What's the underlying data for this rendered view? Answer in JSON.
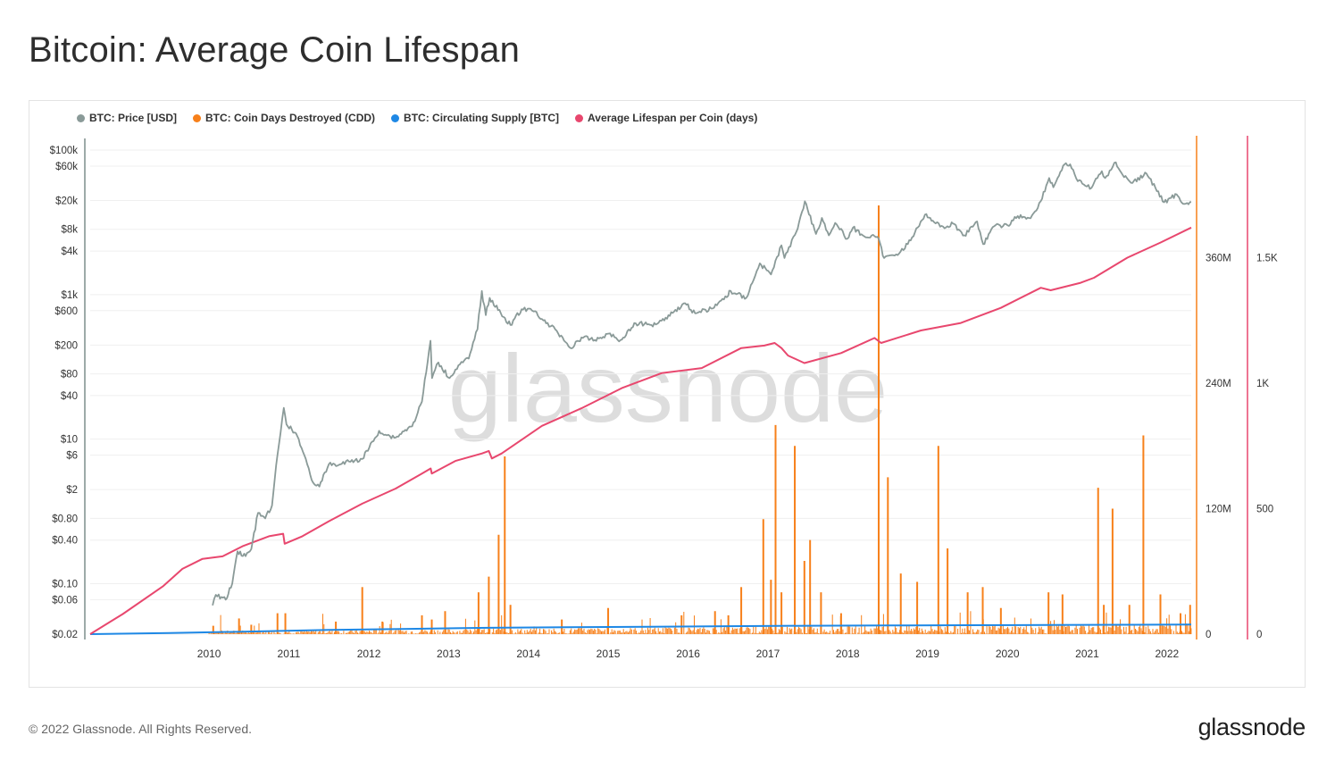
{
  "page": {
    "title": "Bitcoin: Average Coin Lifespan",
    "footer": "© 2022 Glassnode. All Rights Reserved.",
    "brand": "glassnode",
    "watermark": "glassnode"
  },
  "chart_data": {
    "type": "line",
    "grid": true,
    "legend_placement": "top-left",
    "legend": [
      {
        "label": "BTC: Price [USD]",
        "color": "#8a9a98"
      },
      {
        "label": "BTC: Coin Days Destroyed (CDD)",
        "color": "#f7801a"
      },
      {
        "label": "BTC: Circulating Supply [BTC]",
        "color": "#1e88e5"
      },
      {
        "label": "Average Lifespan per Coin (days)",
        "color": "#e8476e"
      }
    ],
    "x_ticks": [
      "2010",
      "2011",
      "2012",
      "2013",
      "2014",
      "2015",
      "2016",
      "2017",
      "2018",
      "2019",
      "2020",
      "2021",
      "2022"
    ],
    "x_range": [
      "2009-01-03",
      "2022-10-20"
    ],
    "price_axis": {
      "scale": "log",
      "ticks": [
        {
          "label": "$100k",
          "value": 100000
        },
        {
          "label": "$60k",
          "value": 60000
        },
        {
          "label": "$20k",
          "value": 20000
        },
        {
          "label": "$8k",
          "value": 8000
        },
        {
          "label": "$4k",
          "value": 4000
        },
        {
          "label": "$1k",
          "value": 1000
        },
        {
          "label": "$600",
          "value": 600
        },
        {
          "label": "$200",
          "value": 200
        },
        {
          "label": "$80",
          "value": 80
        },
        {
          "label": "$40",
          "value": 40
        },
        {
          "label": "$10",
          "value": 10
        },
        {
          "label": "$6",
          "value": 6
        },
        {
          "label": "$2",
          "value": 2
        },
        {
          "label": "$0.80",
          "value": 0.8
        },
        {
          "label": "$0.40",
          "value": 0.4
        },
        {
          "label": "$0.10",
          "value": 0.1
        },
        {
          "label": "$0.06",
          "value": 0.06
        },
        {
          "label": "$0.02",
          "value": 0.02
        }
      ]
    },
    "cdd_axis": {
      "ticks": [
        {
          "label": "360M",
          "value": 360000000
        },
        {
          "label": "240M",
          "value": 240000000
        },
        {
          "label": "120M",
          "value": 120000000
        },
        {
          "label": "0",
          "value": 0
        }
      ],
      "range": [
        0,
        480000000
      ]
    },
    "lifespan_axis": {
      "ticks": [
        {
          "label": "1.5K",
          "value": 1500
        },
        {
          "label": "1K",
          "value": 1000
        },
        {
          "label": "500",
          "value": 500
        },
        {
          "label": "0",
          "value": 0
        }
      ],
      "range": [
        0,
        2000
      ]
    },
    "series": [
      {
        "name": "BTC: Price [USD]",
        "color": "#8a9a98",
        "axis": "price",
        "points": [
          [
            "2010-07-17",
            0.05
          ],
          [
            "2010-08-01",
            0.07
          ],
          [
            "2010-09-15",
            0.06
          ],
          [
            "2010-10-15",
            0.1
          ],
          [
            "2010-11-08",
            0.28
          ],
          [
            "2010-12-15",
            0.24
          ],
          [
            "2011-01-10",
            0.3
          ],
          [
            "2011-02-10",
            0.95
          ],
          [
            "2011-03-15",
            0.8
          ],
          [
            "2011-04-15",
            1.2
          ],
          [
            "2011-05-10",
            6
          ],
          [
            "2011-06-08",
            27
          ],
          [
            "2011-06-20",
            16
          ],
          [
            "2011-07-15",
            13.5
          ],
          [
            "2011-08-15",
            10
          ],
          [
            "2011-09-10",
            6
          ],
          [
            "2011-10-20",
            2.5
          ],
          [
            "2011-11-18",
            2.2
          ],
          [
            "2011-12-31",
            4.5
          ],
          [
            "2012-02-15",
            4.4
          ],
          [
            "2012-04-01",
            4.9
          ],
          [
            "2012-06-01",
            5.3
          ],
          [
            "2012-08-17",
            13
          ],
          [
            "2012-09-15",
            11.5
          ],
          [
            "2012-11-01",
            10.5
          ],
          [
            "2012-12-15",
            13.4
          ],
          [
            "2013-01-15",
            15
          ],
          [
            "2013-03-01",
            33
          ],
          [
            "2013-04-09",
            230
          ],
          [
            "2013-04-16",
            70
          ],
          [
            "2013-05-15",
            115
          ],
          [
            "2013-07-05",
            70
          ],
          [
            "2013-08-15",
            105
          ],
          [
            "2013-10-01",
            130
          ],
          [
            "2013-11-10",
            330
          ],
          [
            "2013-11-30",
            1120
          ],
          [
            "2013-12-18",
            520
          ],
          [
            "2014-01-05",
            900
          ],
          [
            "2014-02-25",
            550
          ],
          [
            "2014-04-10",
            380
          ],
          [
            "2014-05-31",
            625
          ],
          [
            "2014-08-01",
            590
          ],
          [
            "2014-09-20",
            400
          ],
          [
            "2014-11-01",
            330
          ],
          [
            "2015-01-14",
            180
          ],
          [
            "2015-03-01",
            255
          ],
          [
            "2015-05-01",
            235
          ],
          [
            "2015-07-10",
            290
          ],
          [
            "2015-08-20",
            225
          ],
          [
            "2015-11-04",
            400
          ],
          [
            "2016-01-15",
            380
          ],
          [
            "2016-03-01",
            435
          ],
          [
            "2016-06-17",
            760
          ],
          [
            "2016-08-02",
            550
          ],
          [
            "2016-10-15",
            640
          ],
          [
            "2016-12-31",
            960
          ],
          [
            "2017-01-05",
            1130
          ],
          [
            "2017-03-24",
            900
          ],
          [
            "2017-05-25",
            2700
          ],
          [
            "2017-07-15",
            1900
          ],
          [
            "2017-09-01",
            4800
          ],
          [
            "2017-09-15",
            3200
          ],
          [
            "2017-11-08",
            7400
          ],
          [
            "2017-12-17",
            19500
          ],
          [
            "2018-02-06",
            6900
          ],
          [
            "2018-03-05",
            11500
          ],
          [
            "2018-04-06",
            6600
          ],
          [
            "2018-05-05",
            9800
          ],
          [
            "2018-06-29",
            5900
          ],
          [
            "2018-07-25",
            8400
          ],
          [
            "2018-09-15",
            6400
          ],
          [
            "2018-11-14",
            6300
          ],
          [
            "2018-12-15",
            3200
          ],
          [
            "2019-02-08",
            3600
          ],
          [
            "2019-04-02",
            5000
          ],
          [
            "2019-06-26",
            13000
          ],
          [
            "2019-08-01",
            10000
          ],
          [
            "2019-09-24",
            8500
          ],
          [
            "2019-10-26",
            9600
          ],
          [
            "2019-12-17",
            6600
          ],
          [
            "2020-02-13",
            10300
          ],
          [
            "2020-03-12",
            5000
          ],
          [
            "2020-05-01",
            8800
          ],
          [
            "2020-07-01",
            9100
          ],
          [
            "2020-08-17",
            12200
          ],
          [
            "2020-10-15",
            11400
          ],
          [
            "2020-11-30",
            19500
          ],
          [
            "2021-01-08",
            41000
          ],
          [
            "2021-01-27",
            30500
          ],
          [
            "2021-03-13",
            61000
          ],
          [
            "2021-04-14",
            63500
          ],
          [
            "2021-05-19",
            37000
          ],
          [
            "2021-07-20",
            29800
          ],
          [
            "2021-09-06",
            51000
          ],
          [
            "2021-09-21",
            41000
          ],
          [
            "2021-11-09",
            67500
          ],
          [
            "2021-12-04",
            48500
          ],
          [
            "2022-01-24",
            35000
          ],
          [
            "2022-03-29",
            47500
          ],
          [
            "2022-05-09",
            30000
          ],
          [
            "2022-06-18",
            19000
          ],
          [
            "2022-08-14",
            24400
          ],
          [
            "2022-09-06",
            18800
          ],
          [
            "2022-10-20",
            19100
          ]
        ]
      },
      {
        "name": "Average Lifespan per Coin (days)",
        "color": "#e8476e",
        "axis": "lifespan",
        "points": [
          [
            "2009-01-03",
            0
          ],
          [
            "2009-06-01",
            80
          ],
          [
            "2009-12-01",
            190
          ],
          [
            "2010-03-01",
            260
          ],
          [
            "2010-06-01",
            300
          ],
          [
            "2010-09-01",
            310
          ],
          [
            "2010-12-01",
            350
          ],
          [
            "2011-04-01",
            390
          ],
          [
            "2011-06-05",
            400
          ],
          [
            "2011-06-12",
            360
          ],
          [
            "2011-09-01",
            390
          ],
          [
            "2012-01-01",
            450
          ],
          [
            "2012-06-01",
            520
          ],
          [
            "2012-11-01",
            580
          ],
          [
            "2013-03-01",
            640
          ],
          [
            "2013-04-10",
            660
          ],
          [
            "2013-04-15",
            640
          ],
          [
            "2013-08-01",
            690
          ],
          [
            "2013-12-01",
            720
          ],
          [
            "2014-01-01",
            730
          ],
          [
            "2014-01-15",
            700
          ],
          [
            "2014-03-01",
            720
          ],
          [
            "2014-09-01",
            830
          ],
          [
            "2015-03-01",
            900
          ],
          [
            "2015-09-01",
            980
          ],
          [
            "2016-03-01",
            1040
          ],
          [
            "2016-09-01",
            1060
          ],
          [
            "2017-03-01",
            1140
          ],
          [
            "2017-06-15",
            1150
          ],
          [
            "2017-08-01",
            1160
          ],
          [
            "2017-09-01",
            1140
          ],
          [
            "2017-10-01",
            1110
          ],
          [
            "2017-12-15",
            1080
          ],
          [
            "2018-06-01",
            1120
          ],
          [
            "2018-11-01",
            1180
          ],
          [
            "2018-12-01",
            1160
          ],
          [
            "2019-06-01",
            1210
          ],
          [
            "2019-12-01",
            1240
          ],
          [
            "2020-06-01",
            1300
          ],
          [
            "2020-12-01",
            1380
          ],
          [
            "2021-01-15",
            1370
          ],
          [
            "2021-06-01",
            1400
          ],
          [
            "2021-08-01",
            1420
          ],
          [
            "2022-01-01",
            1500
          ],
          [
            "2022-06-01",
            1560
          ],
          [
            "2022-10-20",
            1620
          ]
        ]
      },
      {
        "name": "BTC: Circulating Supply [BTC]",
        "color": "#1e88e5",
        "axis": "cdd",
        "points": [
          [
            "2009-01-03",
            0
          ],
          [
            "2010-01-01",
            1000000
          ],
          [
            "2011-01-01",
            2500000
          ],
          [
            "2012-01-01",
            4000000
          ],
          [
            "2013-01-01",
            5000000
          ],
          [
            "2014-01-01",
            6100000
          ],
          [
            "2015-01-01",
            6600000
          ],
          [
            "2016-01-01",
            7000000
          ],
          [
            "2017-01-01",
            7600000
          ],
          [
            "2018-01-01",
            8000000
          ],
          [
            "2019-01-01",
            8250000
          ],
          [
            "2020-01-01",
            8500000
          ],
          [
            "2021-01-01",
            8750000
          ],
          [
            "2022-01-01",
            8950000
          ],
          [
            "2022-10-20",
            9100000
          ]
        ]
      },
      {
        "name": "BTC: Coin Days Destroyed (CDD)",
        "color": "#f7801a",
        "axis": "cdd",
        "spikes": [
          [
            "2010-07-20",
            8000000
          ],
          [
            "2010-11-15",
            15000000
          ],
          [
            "2011-01-10",
            9000000
          ],
          [
            "2011-05-10",
            20000000
          ],
          [
            "2011-06-15",
            20000000
          ],
          [
            "2012-02-01",
            12000000
          ],
          [
            "2012-06-01",
            45000000
          ],
          [
            "2012-09-01",
            12000000
          ],
          [
            "2013-03-01",
            18000000
          ],
          [
            "2013-04-15",
            14000000
          ],
          [
            "2013-06-15",
            22000000
          ],
          [
            "2013-11-15",
            40000000
          ],
          [
            "2014-01-01",
            55000000
          ],
          [
            "2014-02-15",
            95000000
          ],
          [
            "2014-03-15",
            170000000
          ],
          [
            "2014-04-10",
            28000000
          ],
          [
            "2014-12-01",
            14000000
          ],
          [
            "2015-07-01",
            25000000
          ],
          [
            "2016-06-01",
            18000000
          ],
          [
            "2016-11-01",
            22000000
          ],
          [
            "2017-01-01",
            18000000
          ],
          [
            "2017-03-01",
            45000000
          ],
          [
            "2017-06-10",
            110000000
          ],
          [
            "2017-07-15",
            52000000
          ],
          [
            "2017-08-05",
            200000000
          ],
          [
            "2017-09-01",
            40000000
          ],
          [
            "2017-11-01",
            180000000
          ],
          [
            "2017-12-15",
            70000000
          ],
          [
            "2018-01-10",
            90000000
          ],
          [
            "2018-03-01",
            40000000
          ],
          [
            "2018-06-01",
            20000000
          ],
          [
            "2018-11-20",
            410000000
          ],
          [
            "2019-01-01",
            150000000
          ],
          [
            "2019-03-01",
            58000000
          ],
          [
            "2019-05-15",
            50000000
          ],
          [
            "2019-08-20",
            180000000
          ],
          [
            "2019-10-01",
            82000000
          ],
          [
            "2020-01-01",
            40000000
          ],
          [
            "2020-03-10",
            45000000
          ],
          [
            "2020-06-01",
            25000000
          ],
          [
            "2021-01-05",
            40000000
          ],
          [
            "2021-03-10",
            38000000
          ],
          [
            "2021-08-20",
            140000000
          ],
          [
            "2021-09-15",
            28000000
          ],
          [
            "2021-10-25",
            120000000
          ],
          [
            "2022-01-10",
            28000000
          ],
          [
            "2022-03-15",
            190000000
          ],
          [
            "2022-06-01",
            38000000
          ],
          [
            "2022-09-01",
            20000000
          ],
          [
            "2022-10-15",
            28000000
          ]
        ]
      }
    ]
  }
}
